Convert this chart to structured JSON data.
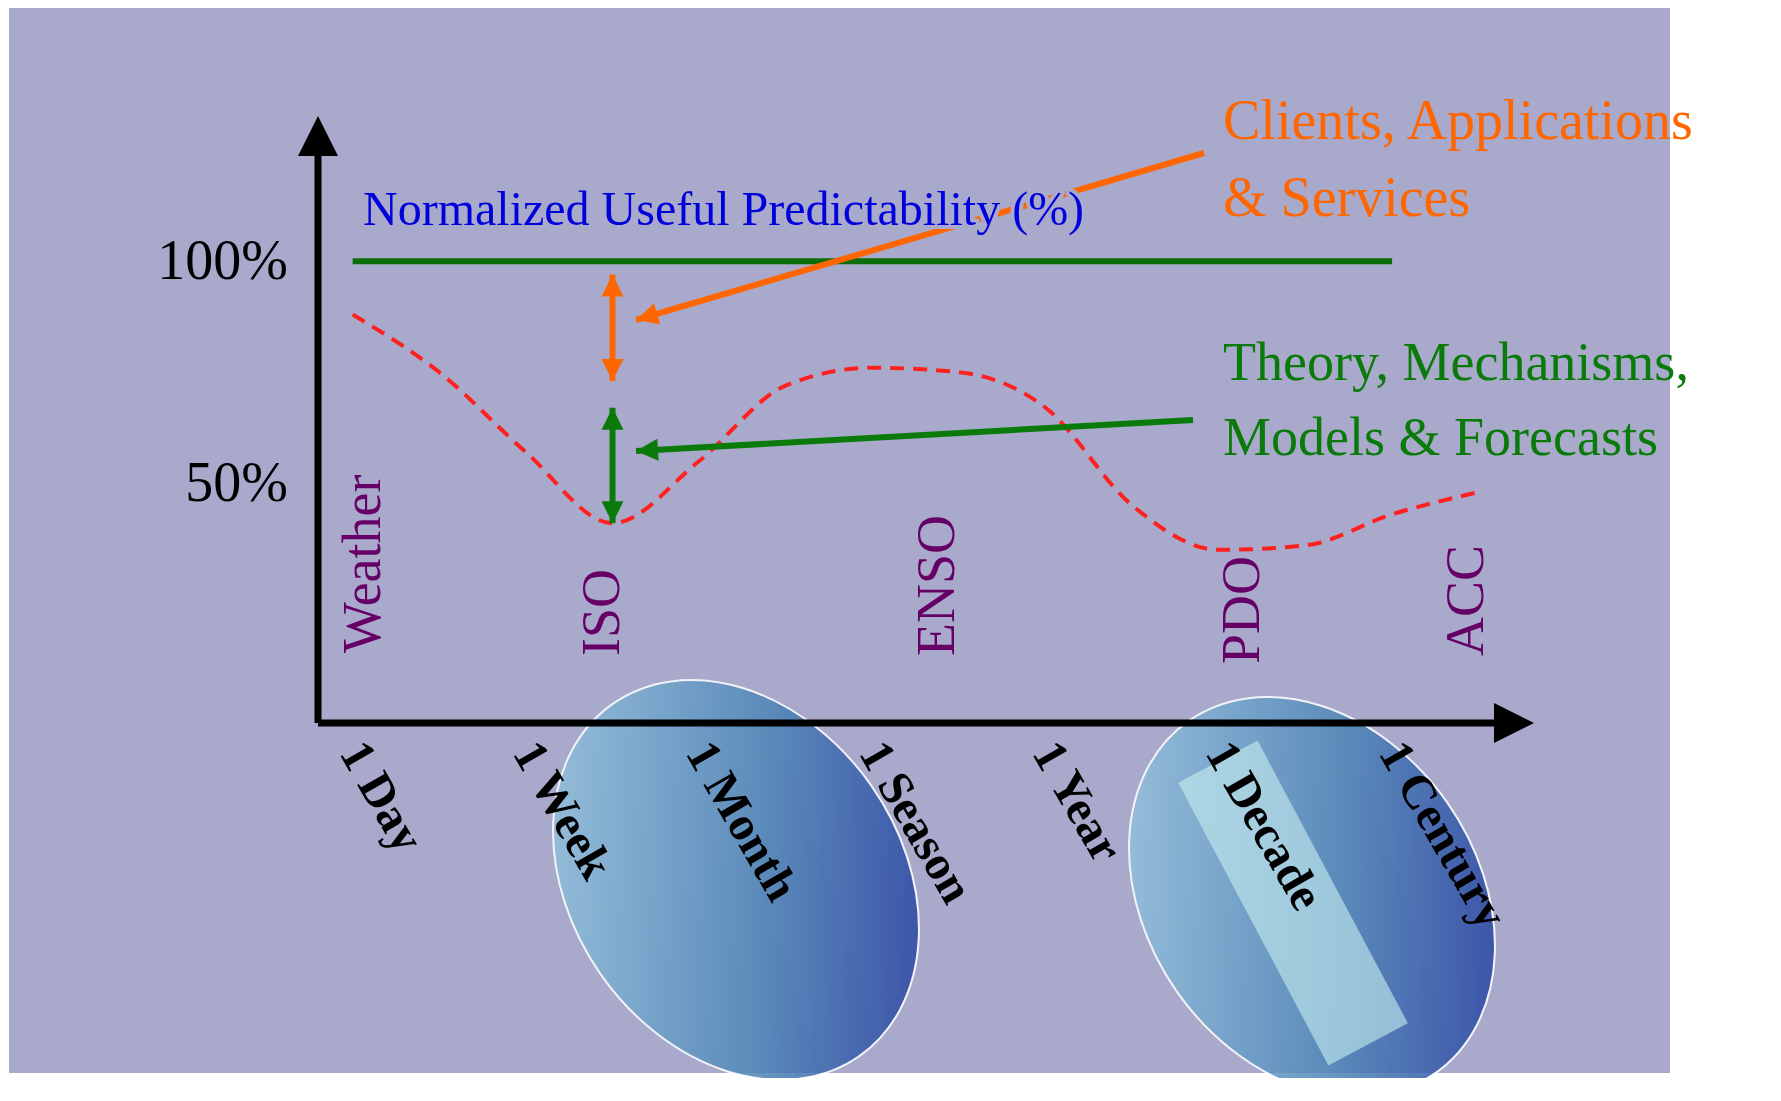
{
  "chart_data": {
    "type": "line",
    "ylabel": "Normalized Useful Predictability (%)",
    "categories": [
      "1 Day",
      null,
      "1 Week",
      null,
      "1 Month",
      null,
      "1 Season",
      null,
      "1 Year",
      null,
      "1 Decade",
      null,
      "1 Century",
      null
    ],
    "ylim": [
      -4,
      130
    ],
    "yticks": [
      {
        "value": 50,
        "label": "50%"
      },
      {
        "value": 100,
        "label": "100%"
      }
    ],
    "series": [
      {
        "color": "#ff2020",
        "line_style": "dashed",
        "values": [
          88,
          75,
          57,
          41,
          55,
          72,
          76,
          75,
          67,
          45,
          35,
          36,
          43,
          48
        ]
      },
      {
        "color": "#0a6e0a",
        "line_style": "solid",
        "values": [
          100,
          100,
          100,
          100,
          100,
          100,
          100,
          100,
          100,
          100,
          100,
          100,
          100,
          null
        ]
      }
    ],
    "marker": "none",
    "grid": false,
    "annotations": [
      "Weather",
      "ISO",
      "ENSO",
      "PDO",
      "ACC",
      "Clients, Applications\n& Services",
      "Theory, Mechanisms,\nModels & Forecasts"
    ]
  }
}
